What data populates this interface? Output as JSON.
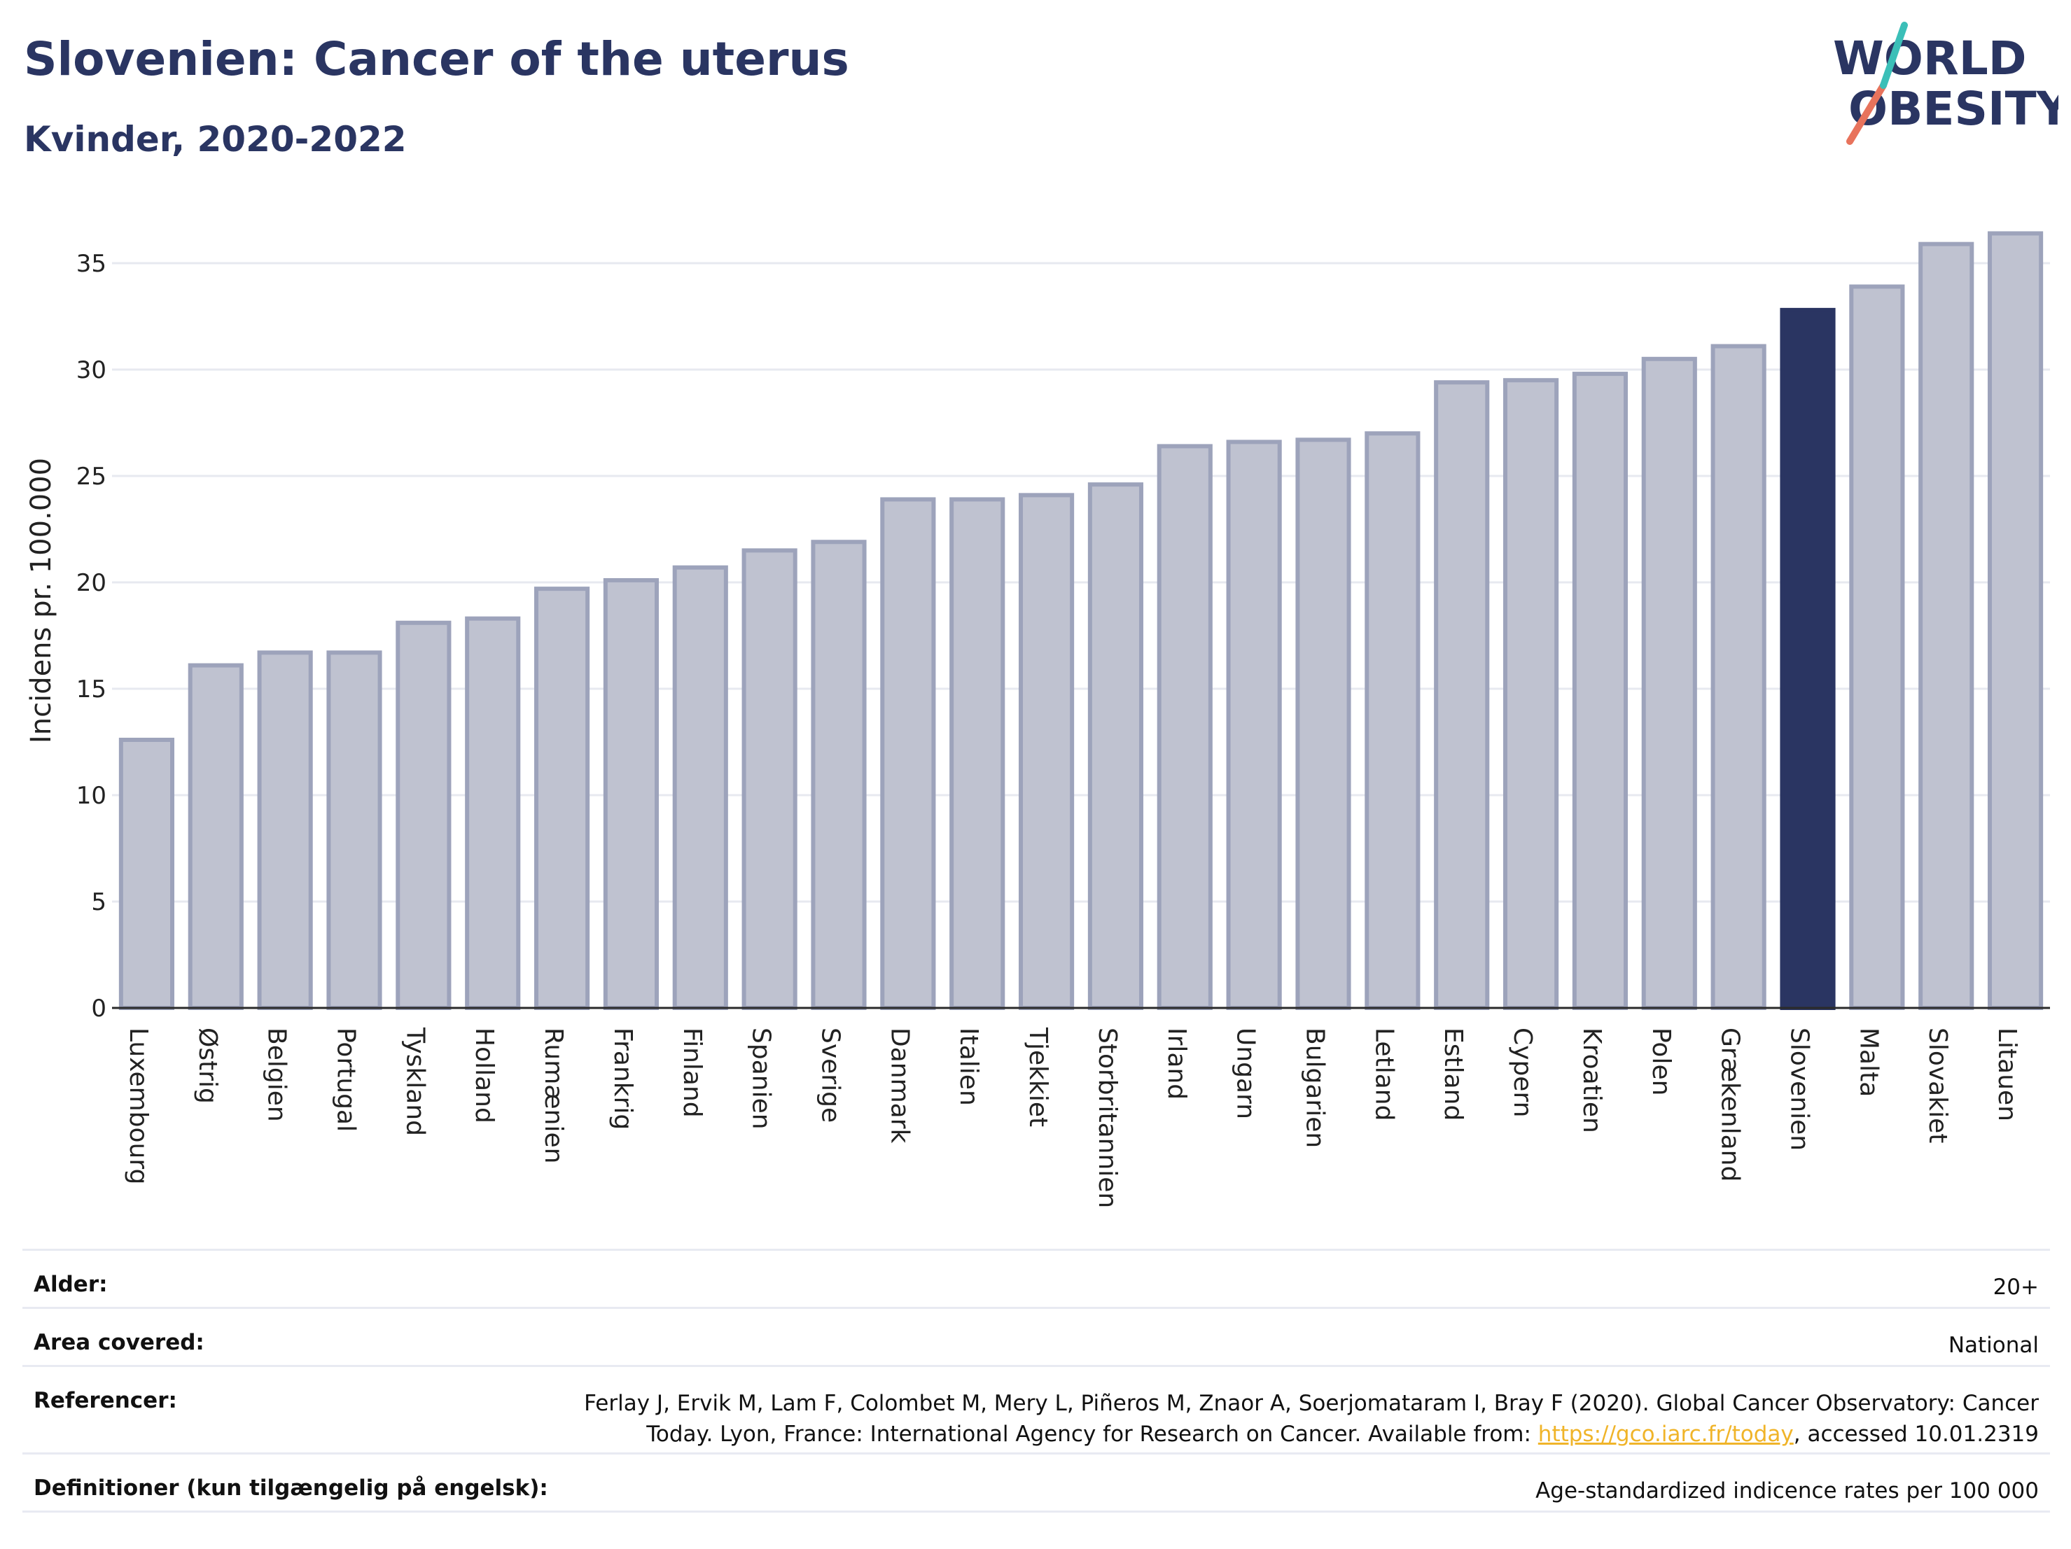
{
  "header": {
    "title": "Slovenien: Cancer of the uterus",
    "subtitle": "Kvinder, 2020-2022"
  },
  "logo": {
    "line1": "WORLD",
    "line2": "OBESITY",
    "text_color": "#2a3562",
    "slash_colors": [
      "#e8735c",
      "#3bbfb8"
    ]
  },
  "colors": {
    "bar_default": "#bfc2d0",
    "bar_border": "#9da3bb",
    "bar_highlight": "#2a3562",
    "grid": "#e7e9f0",
    "axis": "#2a2a2a",
    "text": "#222222"
  },
  "chart_data": {
    "type": "bar",
    "ylabel": "Incidens pr. 100.000",
    "ylim": [
      0,
      37
    ],
    "yticks": [
      0,
      5,
      10,
      15,
      20,
      25,
      30,
      35
    ],
    "grid": true,
    "highlight": "Slovenien",
    "categories": [
      "Luxembourg",
      "Østrig",
      "Belgien",
      "Portugal",
      "Tyskland",
      "Holland",
      "Rumænien",
      "Frankrig",
      "Finland",
      "Spanien",
      "Sverige",
      "Danmark",
      "Italien",
      "Tjekkiet",
      "Storbritannien",
      "Irland",
      "Ungarn",
      "Bulgarien",
      "Letland",
      "Estland",
      "Cypern",
      "Kroatien",
      "Polen",
      "Grækenland",
      "Slovenien",
      "Malta",
      "Slovakiet",
      "Litauen"
    ],
    "values": [
      12.6,
      16.1,
      16.7,
      16.7,
      18.1,
      18.3,
      19.7,
      20.1,
      20.7,
      21.5,
      21.9,
      23.9,
      23.9,
      24.1,
      24.6,
      26.4,
      26.6,
      26.7,
      27.0,
      29.4,
      29.5,
      29.8,
      30.5,
      31.1,
      32.8,
      33.9,
      35.9,
      36.4
    ]
  },
  "meta": {
    "age_label": "Alder:",
    "age_value": "20+",
    "area_label": "Area covered:",
    "area_value": "National",
    "refs_label": "Referencer:",
    "refs_line1": "Ferlay J, Ervik M, Lam F, Colombet M, Mery L, Piñeros M, Znaor A, Soerjomataram I, Bray F (2020). Global Cancer Observatory: Cancer",
    "refs_line2_pre": "Today. Lyon, France: International Agency for Research on Cancer. Available from: ",
    "refs_link": "https://gco.iarc.fr/today",
    "refs_line2_post": ", accessed 10.01.2319",
    "def_label": "Definitioner (kun tilgængelig på engelsk):",
    "def_value": "Age-standardized indicence rates per 100 000"
  }
}
